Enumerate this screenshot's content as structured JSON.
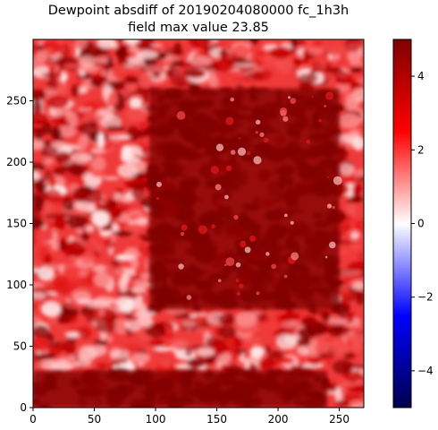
{
  "chart_data": {
    "type": "heatmap",
    "title": "Dewpoint absdiff of 20190204080000 fc_1h3h",
    "subtitle": "field max value 23.85",
    "xlabel": "",
    "ylabel": "",
    "xlim": [
      0,
      270
    ],
    "ylim": [
      0,
      300
    ],
    "x_ticks": [
      0,
      50,
      100,
      150,
      200,
      250
    ],
    "y_ticks": [
      0,
      50,
      100,
      150,
      200,
      250
    ],
    "field_max_value": 23.85,
    "colormap": "seismic",
    "colorbar": {
      "vmin": -5,
      "vmax": 5,
      "ticks": [
        -4,
        -2,
        0,
        2,
        4
      ],
      "tick_labels": [
        "−4",
        "−2",
        "0",
        "2",
        "4"
      ],
      "colors": [
        "#00004c",
        "#0000ff",
        "#ffffff",
        "#ff0000",
        "#800000"
      ]
    },
    "regions": [
      {
        "type": "saturated",
        "value": 5,
        "description": "dark red core region",
        "x_range": [
          95,
          250
        ],
        "y_range": [
          80,
          260
        ]
      },
      {
        "type": "saturated",
        "value": 5,
        "description": "lower band",
        "x_range": [
          0,
          240
        ],
        "y_range": [
          0,
          30
        ]
      }
    ]
  }
}
